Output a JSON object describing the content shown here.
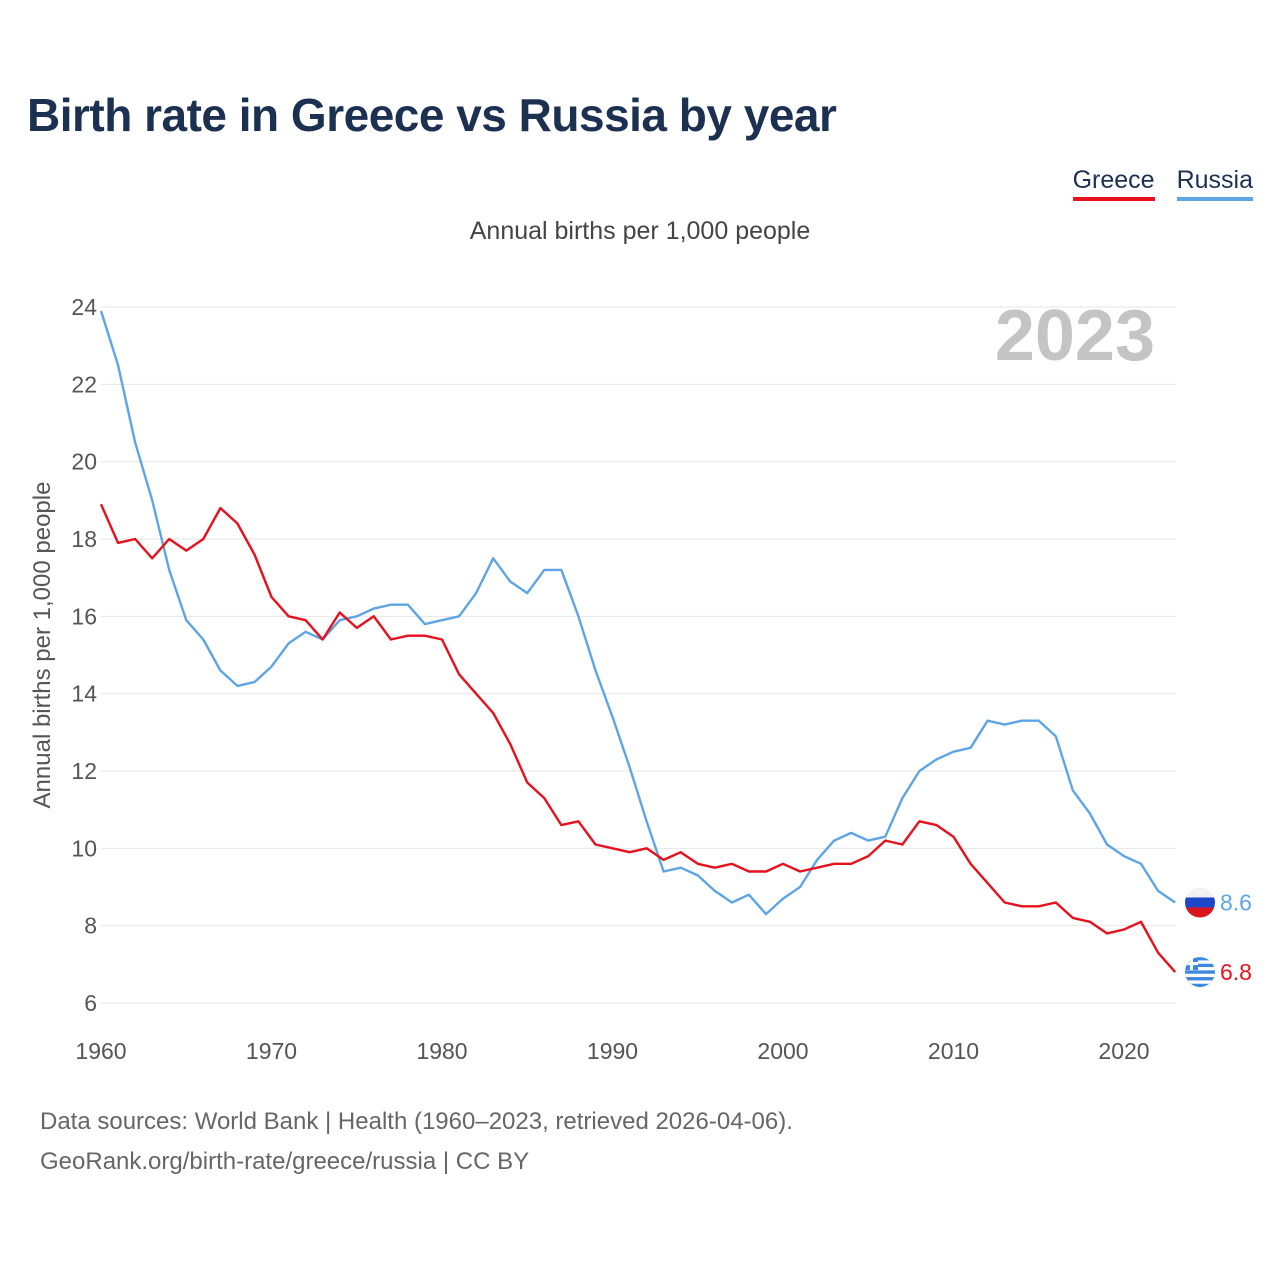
{
  "title": "Birth rate in Greece vs Russia by year",
  "subtitle": "Annual births per 1,000 people",
  "legend": {
    "greece": "Greece",
    "russia": "Russia"
  },
  "year_watermark": "2023",
  "source_line1": "Data sources: World Bank | Health (1960–2023, retrieved 2026-04-06).",
  "source_line2": "GeoRank.org/birth-rate/greece/russia | CC BY",
  "chart_data": {
    "type": "line",
    "title": "Birth rate in Greece vs Russia by year",
    "ylabel": "Annual births per 1,000 people",
    "xlabel": "",
    "xlim": [
      1960,
      2023
    ],
    "ylim": [
      6,
      24
    ],
    "y_ticks": [
      6,
      8,
      10,
      12,
      14,
      16,
      18,
      20,
      22,
      24
    ],
    "x_ticks": [
      1960,
      1970,
      1980,
      1990,
      2000,
      2010,
      2020
    ],
    "grid": true,
    "x_start": 1960,
    "series": [
      {
        "name": "Greece",
        "color": "#e8101c",
        "end_label": "6.8",
        "values": [
          18.9,
          17.9,
          18.0,
          17.5,
          18.0,
          17.7,
          18.0,
          18.8,
          18.4,
          17.6,
          16.5,
          16.0,
          15.9,
          15.4,
          16.1,
          15.7,
          16.0,
          15.4,
          15.5,
          15.5,
          15.4,
          14.5,
          14.0,
          13.5,
          12.7,
          11.7,
          11.3,
          10.6,
          10.7,
          10.1,
          10.0,
          9.9,
          10.0,
          9.7,
          9.9,
          9.6,
          9.5,
          9.6,
          9.4,
          9.4,
          9.6,
          9.4,
          9.5,
          9.6,
          9.6,
          9.8,
          10.2,
          10.1,
          10.7,
          10.6,
          10.3,
          9.6,
          9.1,
          8.6,
          8.5,
          8.5,
          8.6,
          8.2,
          8.1,
          7.8,
          7.9,
          8.1,
          7.3,
          6.8
        ]
      },
      {
        "name": "Russia",
        "color": "#5ea5e6",
        "end_label": "8.6",
        "values": [
          23.9,
          22.5,
          20.5,
          19.0,
          17.2,
          15.9,
          15.4,
          14.6,
          14.2,
          14.3,
          14.7,
          15.3,
          15.6,
          15.4,
          15.9,
          16.0,
          16.2,
          16.3,
          16.3,
          15.8,
          15.9,
          16.0,
          16.6,
          17.5,
          16.9,
          16.6,
          17.2,
          17.2,
          16.0,
          14.6,
          13.4,
          12.1,
          10.7,
          9.4,
          9.5,
          9.3,
          8.9,
          8.6,
          8.8,
          8.3,
          8.7,
          9.0,
          9.7,
          10.2,
          10.4,
          10.2,
          10.3,
          11.3,
          12.0,
          12.3,
          12.5,
          12.6,
          13.3,
          13.2,
          13.3,
          13.3,
          12.9,
          11.5,
          10.9,
          10.1,
          9.8,
          9.6,
          8.9,
          8.6
        ]
      }
    ]
  }
}
